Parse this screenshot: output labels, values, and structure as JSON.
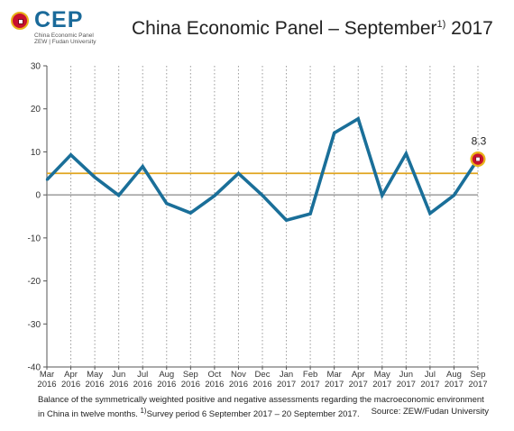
{
  "logo": {
    "name": "CEP",
    "line1": "China Economic Panel",
    "line2": "ZEW | Fudan University"
  },
  "title": {
    "main": "China Economic Panel – September",
    "sup": "1)",
    "year": " 2017"
  },
  "chart_data": {
    "type": "line",
    "x_months": [
      "Mar",
      "Apr",
      "May",
      "Jun",
      "Jul",
      "Aug",
      "Sep",
      "Oct",
      "Nov",
      "Dec",
      "Jan",
      "Feb",
      "Mar",
      "Apr",
      "May",
      "Jun",
      "Jul",
      "Aug",
      "Sep"
    ],
    "x_years": [
      "2016",
      "2016",
      "2016",
      "2016",
      "2016",
      "2016",
      "2016",
      "2016",
      "2016",
      "2016",
      "2017",
      "2017",
      "2017",
      "2017",
      "2017",
      "2017",
      "2017",
      "2017",
      "2017"
    ],
    "series": [
      {
        "values": [
          3.5,
          9.3,
          4.1,
          -0.1,
          6.6,
          -2.0,
          -4.2,
          -0.2,
          5.0,
          -0.1,
          -5.9,
          -4.4,
          14.4,
          17.7,
          -0.1,
          9.6,
          -4.3,
          -0.1,
          8.3
        ],
        "color": "#1a6f99"
      }
    ],
    "reference_line": {
      "value": 5.0,
      "color": "#e0a51f"
    },
    "zero_line_color": "#888888",
    "ylim": [
      -40,
      30
    ],
    "yticks": [
      "30",
      "20",
      "10",
      "0",
      "-10",
      "-20",
      "-30",
      "-40"
    ],
    "grid": "vertical dotted",
    "last_point_label": "8.3",
    "marker_color": "#c8102e",
    "marker_ring_color": "#e8b21a"
  },
  "footnote": {
    "text1": "Balance of the symmetrically weighted positive and negative assessments regarding the macroeconomic environment in China in twelve months. ",
    "sup": "1)",
    "text2": "Survey period 6 September 2017 – 20 September 2017."
  },
  "source": "Source: ZEW/Fudan University"
}
